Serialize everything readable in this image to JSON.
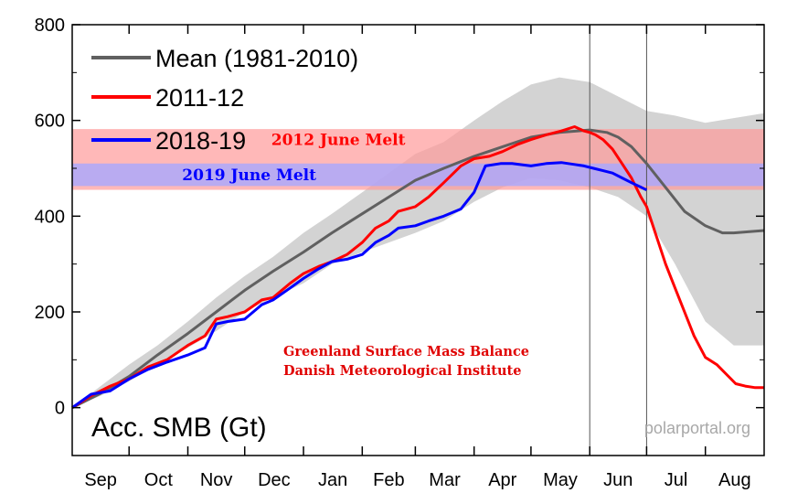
{
  "chart_data": {
    "type": "line",
    "ylabel": "Acc. SMB (Gt)",
    "ylim": [
      -100,
      800
    ],
    "yticks": [
      0,
      200,
      400,
      600,
      800
    ],
    "xlim": [
      0,
      365
    ],
    "months": [
      {
        "label": "Sep",
        "start": 0,
        "end": 30
      },
      {
        "label": "Oct",
        "start": 30,
        "end": 61
      },
      {
        "label": "Nov",
        "start": 61,
        "end": 91
      },
      {
        "label": "Dec",
        "start": 91,
        "end": 122
      },
      {
        "label": "Jan",
        "start": 122,
        "end": 153
      },
      {
        "label": "Feb",
        "start": 153,
        "end": 181
      },
      {
        "label": "Mar",
        "start": 181,
        "end": 212
      },
      {
        "label": "Apr",
        "start": 212,
        "end": 242
      },
      {
        "label": "May",
        "start": 242,
        "end": 273
      },
      {
        "label": "Jun",
        "start": 273,
        "end": 303
      },
      {
        "label": "Jul",
        "start": 303,
        "end": 334
      },
      {
        "label": "Aug",
        "start": 334,
        "end": 365
      }
    ],
    "vlines": [
      273,
      303
    ],
    "band": {
      "color": "#d3d3d3",
      "x": [
        0,
        15,
        30,
        45,
        61,
        76,
        91,
        106,
        122,
        137,
        153,
        167,
        181,
        196,
        212,
        227,
        242,
        257,
        273,
        288,
        303,
        318,
        334,
        349,
        365
      ],
      "upper": [
        0,
        45,
        90,
        130,
        180,
        230,
        275,
        315,
        365,
        405,
        450,
        490,
        530,
        555,
        600,
        640,
        675,
        690,
        680,
        650,
        620,
        610,
        595,
        605,
        615
      ],
      "lower": [
        0,
        25,
        55,
        90,
        125,
        160,
        200,
        230,
        260,
        300,
        325,
        345,
        365,
        390,
        430,
        460,
        480,
        475,
        460,
        440,
        400,
        300,
        180,
        130,
        130
      ]
    },
    "shaded_regions": [
      {
        "name": "2012 June Melt",
        "y0": 455,
        "y1": 582,
        "color": "#ff9a9a",
        "opacity": 0.7,
        "text_color": "#ff0000",
        "label_x": 105,
        "label_y": 560
      },
      {
        "name": "2019 June Melt",
        "y0": 463,
        "y1": 510,
        "color": "#a8a8ff",
        "opacity": 0.8,
        "text_color": "#0000ff",
        "label_x": 58,
        "label_y": 487
      }
    ],
    "series": [
      {
        "name": "Mean (1981-2010)",
        "color": "#606060",
        "x": [
          0,
          15,
          30,
          45,
          61,
          76,
          91,
          106,
          122,
          137,
          153,
          167,
          181,
          196,
          212,
          227,
          242,
          257,
          273,
          282,
          288,
          295,
          303,
          313,
          323,
          334,
          343,
          349,
          358,
          365
        ],
        "y": [
          0,
          30,
          65,
          110,
          155,
          200,
          245,
          285,
          325,
          365,
          405,
          440,
          475,
          500,
          525,
          545,
          565,
          575,
          580,
          575,
          565,
          545,
          510,
          460,
          410,
          380,
          365,
          365,
          368,
          370
        ]
      },
      {
        "name": "2011-12",
        "color": "#ff0000",
        "x": [
          0,
          10,
          20,
          30,
          40,
          50,
          61,
          70,
          76,
          82,
          91,
          100,
          106,
          115,
          122,
          130,
          137,
          145,
          153,
          160,
          167,
          172,
          181,
          188,
          196,
          205,
          212,
          220,
          227,
          235,
          242,
          250,
          258,
          265,
          270,
          273,
          276,
          280,
          285,
          290,
          295,
          300,
          303,
          308,
          313,
          318,
          323,
          328,
          334,
          340,
          345,
          350,
          355,
          360,
          365
        ],
        "y": [
          0,
          25,
          45,
          60,
          85,
          100,
          130,
          150,
          185,
          190,
          200,
          225,
          230,
          260,
          280,
          295,
          305,
          320,
          345,
          375,
          390,
          410,
          420,
          440,
          470,
          505,
          520,
          525,
          535,
          550,
          560,
          570,
          578,
          587,
          578,
          575,
          570,
          560,
          540,
          510,
          480,
          440,
          420,
          360,
          300,
          250,
          200,
          150,
          105,
          90,
          70,
          50,
          45,
          42,
          42
        ]
      },
      {
        "name": "2018-19",
        "color": "#0000ff",
        "x": [
          0,
          10,
          20,
          30,
          40,
          50,
          61,
          70,
          76,
          82,
          91,
          100,
          106,
          115,
          122,
          130,
          137,
          145,
          153,
          160,
          167,
          172,
          181,
          188,
          196,
          205,
          212,
          218,
          226,
          232,
          242,
          250,
          258,
          265,
          270,
          275,
          280,
          285,
          290,
          295,
          303
        ],
        "y": [
          0,
          28,
          35,
          60,
          80,
          95,
          110,
          125,
          175,
          180,
          185,
          215,
          225,
          250,
          270,
          290,
          305,
          310,
          320,
          345,
          360,
          375,
          380,
          390,
          400,
          415,
          450,
          505,
          510,
          510,
          505,
          510,
          512,
          508,
          505,
          500,
          495,
          490,
          480,
          470,
          455
        ]
      }
    ],
    "annotations": [
      "Greenland Surface Mass Balance",
      "Danish Meteorological Institute"
    ],
    "source": "polarportal.org"
  }
}
